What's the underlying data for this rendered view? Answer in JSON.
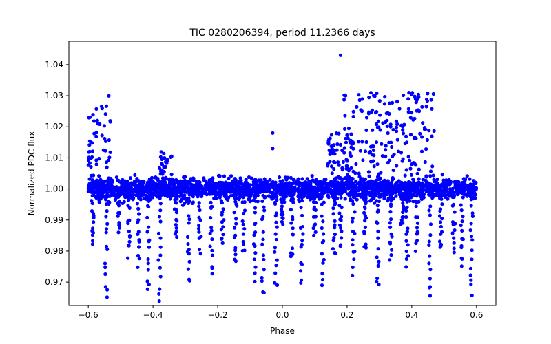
{
  "chart_data": {
    "type": "scatter",
    "title": "TIC 0280206394, period 11.2366 days",
    "xlabel": "Phase",
    "ylabel": "Normalized PDC flux",
    "xlim": [
      -0.66,
      0.66
    ],
    "ylim": [
      0.9625,
      1.0475
    ],
    "xticks": [
      -0.6,
      -0.4,
      -0.2,
      0.0,
      0.2,
      0.4,
      0.6
    ],
    "xtick_labels": [
      "−0.6",
      "−0.4",
      "−0.2",
      "0.0",
      "0.2",
      "0.4",
      "0.6"
    ],
    "yticks": [
      0.97,
      0.98,
      0.99,
      1.0,
      1.01,
      1.02,
      1.03,
      1.04
    ],
    "ytick_labels": [
      "0.97",
      "0.98",
      "0.99",
      "1.00",
      "1.01",
      "1.02",
      "1.03",
      "1.04"
    ],
    "grid": false,
    "marker_color": "#0000ff",
    "baseline": {
      "x_range": [
        -0.6,
        0.6
      ],
      "flux": 1.0,
      "scatter": 0.003
    },
    "dips": [
      {
        "phase": -0.585,
        "min_flux": 0.982
      },
      {
        "phase": -0.545,
        "min_flux": 0.965
      },
      {
        "phase": -0.505,
        "min_flux": 0.987
      },
      {
        "phase": -0.475,
        "min_flux": 0.979
      },
      {
        "phase": -0.445,
        "min_flux": 0.976
      },
      {
        "phase": -0.415,
        "min_flux": 0.967
      },
      {
        "phase": -0.38,
        "min_flux": 0.964
      },
      {
        "phase": -0.33,
        "min_flux": 0.984
      },
      {
        "phase": -0.29,
        "min_flux": 0.97
      },
      {
        "phase": -0.255,
        "min_flux": 0.98
      },
      {
        "phase": -0.22,
        "min_flux": 0.972
      },
      {
        "phase": -0.185,
        "min_flux": 0.982
      },
      {
        "phase": -0.145,
        "min_flux": 0.975
      },
      {
        "phase": -0.12,
        "min_flux": 0.98
      },
      {
        "phase": -0.085,
        "min_flux": 0.971
      },
      {
        "phase": -0.06,
        "min_flux": 0.965
      },
      {
        "phase": -0.02,
        "min_flux": 0.968
      },
      {
        "phase": 0.0,
        "min_flux": 0.988
      },
      {
        "phase": 0.03,
        "min_flux": 0.978
      },
      {
        "phase": 0.06,
        "min_flux": 0.969
      },
      {
        "phase": 0.1,
        "min_flux": 0.985
      },
      {
        "phase": 0.125,
        "min_flux": 0.97
      },
      {
        "phase": 0.16,
        "min_flux": 0.978
      },
      {
        "phase": 0.18,
        "min_flux": 0.982
      },
      {
        "phase": 0.22,
        "min_flux": 0.973
      },
      {
        "phase": 0.255,
        "min_flux": 0.98
      },
      {
        "phase": 0.295,
        "min_flux": 0.969
      },
      {
        "phase": 0.335,
        "min_flux": 0.977
      },
      {
        "phase": 0.37,
        "min_flux": 0.988
      },
      {
        "phase": 0.385,
        "min_flux": 0.975
      },
      {
        "phase": 0.415,
        "min_flux": 0.98
      },
      {
        "phase": 0.455,
        "min_flux": 0.965
      },
      {
        "phase": 0.49,
        "min_flux": 0.98
      },
      {
        "phase": 0.53,
        "min_flux": 0.98
      },
      {
        "phase": 0.555,
        "min_flux": 0.975
      },
      {
        "phase": 0.585,
        "min_flux": 0.966
      }
    ],
    "brightening_clusters": [
      {
        "x_range": [
          -0.6,
          -0.53
        ],
        "max_flux": 1.03
      },
      {
        "x_range": [
          -0.38,
          -0.34
        ],
        "max_flux": 1.012
      },
      {
        "x_range": [
          0.14,
          0.22
        ],
        "max_flux": 1.018
      },
      {
        "x_range": [
          0.19,
          0.47
        ],
        "max_flux": 1.031
      }
    ],
    "isolated_points": [
      {
        "x": 0.18,
        "y": 1.043
      },
      {
        "x": -0.03,
        "y": 1.018
      },
      {
        "x": -0.03,
        "y": 1.013
      }
    ]
  }
}
